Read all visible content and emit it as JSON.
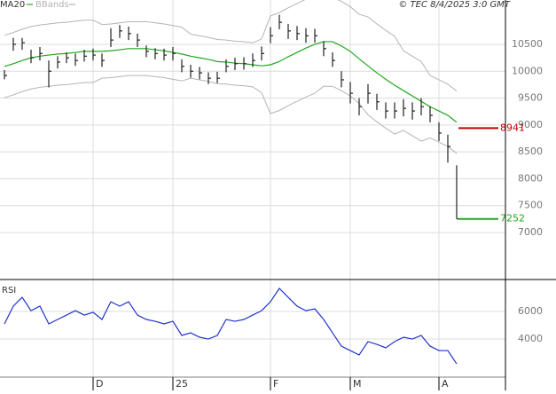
{
  "chart_data": [
    {
      "type": "ohlc",
      "credit": "© TEC 8/4/2025 3:0 GMT",
      "categories": [
        null,
        null,
        null,
        null,
        null,
        null,
        null,
        null,
        null,
        null,
        "D",
        null,
        null,
        null,
        null,
        null,
        null,
        null,
        null,
        "25",
        null,
        null,
        null,
        null,
        null,
        null,
        null,
        null,
        null,
        null,
        "F",
        null,
        null,
        null,
        null,
        null,
        null,
        null,
        null,
        "M",
        null,
        null,
        null,
        null,
        null,
        null,
        null,
        null,
        null,
        "A",
        null,
        null
      ],
      "high": [
        10020,
        10620,
        10620,
        10400,
        10450,
        10200,
        10280,
        10350,
        10330,
        10400,
        10420,
        10330,
        10800,
        10860,
        10830,
        10700,
        10480,
        10430,
        10420,
        10450,
        10220,
        10120,
        10080,
        9980,
        9990,
        10220,
        10250,
        10260,
        10330,
        10460,
        10820,
        11050,
        10880,
        10840,
        10800,
        10790,
        10560,
        10350,
        10000,
        9800,
        9500,
        9760,
        9580,
        9420,
        9420,
        9480,
        9420,
        9500,
        9350,
        9050,
        8820,
        8250
      ],
      "low": [
        9850,
        10380,
        10400,
        10150,
        10200,
        9700,
        10050,
        10150,
        10100,
        10180,
        10200,
        10080,
        10450,
        10620,
        10580,
        10450,
        10260,
        10220,
        10200,
        10200,
        9980,
        9880,
        9850,
        9760,
        9780,
        9980,
        10020,
        10030,
        10080,
        10200,
        10520,
        10780,
        10600,
        10580,
        10530,
        10530,
        10280,
        10080,
        9700,
        9400,
        9180,
        9400,
        9280,
        9120,
        9120,
        9160,
        9100,
        9180,
        9050,
        8700,
        8300,
        7252
      ],
      "close": [
        9920,
        10500,
        10530,
        10250,
        10330,
        10000,
        10170,
        10250,
        10200,
        10280,
        10300,
        10200,
        10580,
        10750,
        10700,
        10580,
        10370,
        10330,
        10300,
        10330,
        10090,
        10000,
        9970,
        9870,
        9870,
        10090,
        10140,
        10140,
        10200,
        10330,
        10660,
        10910,
        10750,
        10700,
        10660,
        10660,
        10420,
        10200,
        9840,
        9590,
        9340,
        9590,
        9430,
        9260,
        9260,
        9310,
        9260,
        9340,
        9180,
        8850,
        8600,
        7252
      ],
      "bar_color": "#222222",
      "series": [
        {
          "name": "MA20",
          "color": "#1fa81f",
          "values": [
            10090,
            10140,
            10200,
            10250,
            10280,
            10300,
            10320,
            10330,
            10350,
            10370,
            10370,
            10370,
            10380,
            10400,
            10420,
            10420,
            10420,
            10400,
            10380,
            10350,
            10320,
            10280,
            10250,
            10220,
            10180,
            10170,
            10150,
            10140,
            10120,
            10100,
            10120,
            10180,
            10270,
            10350,
            10430,
            10500,
            10550,
            10550,
            10470,
            10370,
            10230,
            10100,
            9970,
            9850,
            9740,
            9640,
            9540,
            9440,
            9340,
            9260,
            9180,
            9050
          ]
        },
        {
          "name": "BBands",
          "color": "#b4b4b4",
          "upper": [
            10670,
            10720,
            10780,
            10830,
            10860,
            10880,
            10900,
            10910,
            10930,
            10950,
            10950,
            10870,
            10880,
            10900,
            10920,
            10920,
            10920,
            10900,
            10880,
            10850,
            10820,
            10690,
            10660,
            10630,
            10590,
            10580,
            10560,
            10550,
            10530,
            10600,
            11030,
            11090,
            11180,
            11260,
            11340,
            11410,
            11380,
            11380,
            11300,
            11200,
            11060,
            11010,
            10880,
            10760,
            10650,
            10380,
            10280,
            10180,
            9920,
            9840,
            9760,
            9630
          ],
          "lower": [
            9510,
            9560,
            9620,
            9670,
            9700,
            9720,
            9740,
            9750,
            9770,
            9790,
            9790,
            9870,
            9880,
            9900,
            9920,
            9920,
            9920,
            9900,
            9880,
            9850,
            9820,
            9870,
            9840,
            9810,
            9770,
            9760,
            9740,
            9730,
            9710,
            9600,
            9210,
            9270,
            9360,
            9440,
            9520,
            9590,
            9720,
            9720,
            9640,
            9540,
            9400,
            9190,
            9060,
            8940,
            8830,
            8900,
            8800,
            8700,
            8760,
            8680,
            8600,
            8470
          ]
        }
      ],
      "levels": [
        {
          "value": 8941,
          "color": "#c00000"
        },
        {
          "value": 7252,
          "color": "#1fa81f"
        }
      ],
      "ylim": [
        6125,
        11325
      ],
      "yticks": [
        7000,
        7500,
        8000,
        8500,
        9000,
        9500,
        10000,
        10500
      ],
      "grid": true
    },
    {
      "type": "line",
      "title": "RSI",
      "color": "#2233cc",
      "values": [
        5100,
        6390,
        7030,
        6060,
        6390,
        5100,
        5420,
        5740,
        6060,
        5740,
        5940,
        5420,
        6710,
        6390,
        6710,
        5740,
        5420,
        5290,
        5100,
        5290,
        4260,
        4450,
        4130,
        4000,
        4260,
        5420,
        5290,
        5420,
        5740,
        6060,
        6710,
        7680,
        7030,
        6390,
        6060,
        6190,
        5420,
        4450,
        3480,
        3160,
        2840,
        3810,
        3610,
        3360,
        3810,
        4130,
        4000,
        4260,
        3480,
        3160,
        3160,
        2190
      ],
      "ylim": [
        260,
        8260
      ],
      "yticks": [
        6000,
        4000
      ],
      "grid": true
    }
  ]
}
